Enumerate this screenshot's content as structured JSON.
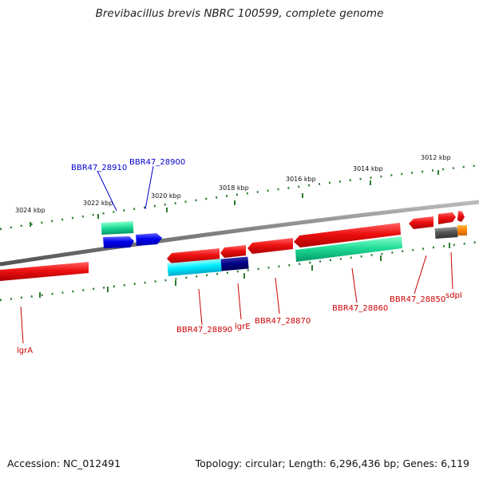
{
  "title": "Brevibacillus brevis NBRC 100599, complete genome",
  "footer": {
    "accession": "Accession: NC_012491",
    "summary": "Topology: circular; Length: 6,296,436 bp; Genes: 6,119"
  },
  "scale_labels": [
    "3012 kbp",
    "3014 kbp",
    "3016 kbp",
    "3018 kbp",
    "3020 kbp",
    "3022 kbp",
    "3024 kbp"
  ],
  "gene_labels": [
    {
      "name": "BBR47_28910",
      "color": "#0000cc"
    },
    {
      "name": "BBR47_28900",
      "color": "#0000cc"
    },
    {
      "name": "lgrA",
      "color": "#cc0000"
    },
    {
      "name": "BBR47_28890",
      "color": "#cc0000"
    },
    {
      "name": "lgrE",
      "color": "#cc0000"
    },
    {
      "name": "BBR47_28870",
      "color": "#cc0000"
    },
    {
      "name": "BBR47_28860",
      "color": "#cc0000"
    },
    {
      "name": "BBR47_28850",
      "color": "#cc0000"
    },
    {
      "name": "sdpI",
      "color": "#cc0000"
    }
  ],
  "colors": {
    "backbone": "#808080",
    "tick": "#2e7d32",
    "gene_red": "#ee1111",
    "gene_green": "#22dd99",
    "gene_blue": "#0000ee",
    "gene_cyan": "#00eeff",
    "gene_navy": "#000088",
    "gene_gray": "#555555",
    "gene_orange": "#ff8800"
  }
}
